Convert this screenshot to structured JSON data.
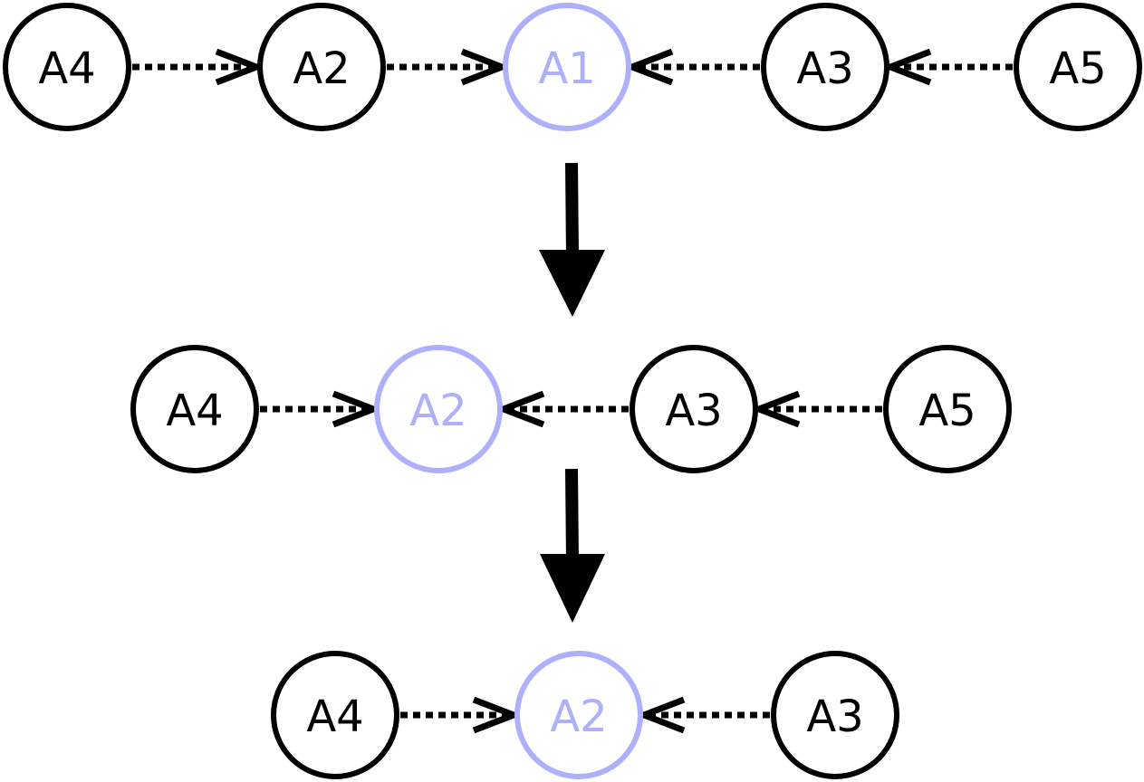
{
  "colors": {
    "default": "#000000",
    "highlight": "#aeb0fb"
  },
  "stages": [
    {
      "nodes": [
        {
          "id": "A4",
          "label": "A4",
          "highlight": false
        },
        {
          "id": "A2",
          "label": "A2",
          "highlight": false
        },
        {
          "id": "A1",
          "label": "A1",
          "highlight": true
        },
        {
          "id": "A3",
          "label": "A3",
          "highlight": false
        },
        {
          "id": "A5",
          "label": "A5",
          "highlight": false
        }
      ],
      "edges": [
        {
          "from": "A4",
          "to": "A2"
        },
        {
          "from": "A2",
          "to": "A1"
        },
        {
          "from": "A3",
          "to": "A1"
        },
        {
          "from": "A5",
          "to": "A3"
        }
      ]
    },
    {
      "nodes": [
        {
          "id": "A4",
          "label": "A4",
          "highlight": false
        },
        {
          "id": "A2",
          "label": "A2",
          "highlight": true
        },
        {
          "id": "A3",
          "label": "A3",
          "highlight": false
        },
        {
          "id": "A5",
          "label": "A5",
          "highlight": false
        }
      ],
      "edges": [
        {
          "from": "A4",
          "to": "A2"
        },
        {
          "from": "A3",
          "to": "A2"
        },
        {
          "from": "A5",
          "to": "A3"
        }
      ]
    },
    {
      "nodes": [
        {
          "id": "A4",
          "label": "A4",
          "highlight": false
        },
        {
          "id": "A2",
          "label": "A2",
          "highlight": true
        },
        {
          "id": "A3",
          "label": "A3",
          "highlight": false
        }
      ],
      "edges": [
        {
          "from": "A4",
          "to": "A2"
        },
        {
          "from": "A3",
          "to": "A2"
        }
      ]
    }
  ]
}
